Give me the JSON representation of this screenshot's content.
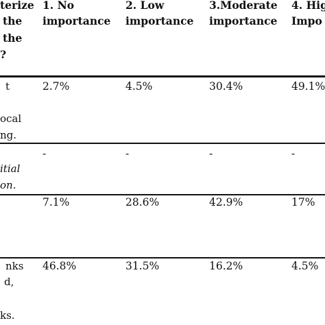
{
  "table": {
    "header": {
      "first_col_lines": [
        "terize",
        "the",
        "the",
        "?"
      ],
      "columns": [
        {
          "line1": "1. No",
          "line2": "importance"
        },
        {
          "line1": "2. Low",
          "line2": "importance"
        },
        {
          "line1": "3.Moderate",
          "line2": "importance"
        },
        {
          "line1": "4. Hig",
          "line2": "Impo"
        }
      ]
    },
    "rows": [
      {
        "label_lines": [
          "t",
          "ocal",
          "ng."
        ],
        "values": [
          "2.7%",
          "4.5%",
          "30.4%",
          "49.1%"
        ]
      },
      {
        "label_lines": [
          "itial",
          "on."
        ],
        "values": [
          "-",
          "-",
          "-",
          "-"
        ]
      },
      {
        "label_lines": [],
        "values": [
          "7.1%",
          "28.6%",
          "42.9%",
          "17%"
        ]
      },
      {
        "label_lines": [
          "nks",
          "d,",
          "ks."
        ],
        "values": [
          "46.8%",
          "31.5%",
          "16.2%",
          "4.5%"
        ]
      }
    ]
  }
}
